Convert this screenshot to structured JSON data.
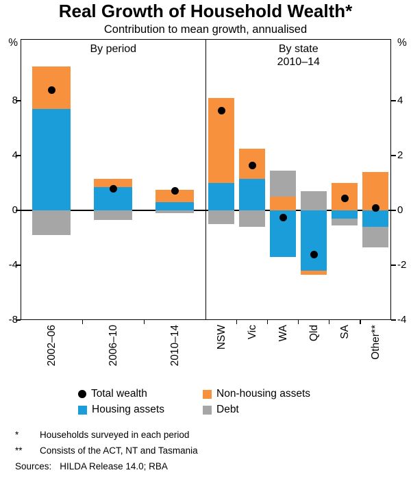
{
  "page": {
    "title": "Real Growth of Household Wealth*",
    "subtitle": "Contribution to mean growth, annualised"
  },
  "chart_data": {
    "type": "bar",
    "variant": "stacked",
    "title": "Real Growth of Household Wealth*",
    "subtitle": "Contribution to mean growth, annualised",
    "unit_left": "%",
    "unit_right": "%",
    "left_axis": {
      "min": -8,
      "max": 12.5,
      "ticks": [
        8,
        4,
        0,
        -4,
        -8
      ]
    },
    "right_axis": {
      "min": -4,
      "max": 6.25,
      "ticks": [
        4,
        2,
        0,
        -2,
        -4
      ]
    },
    "series_order": [
      "housing",
      "non_housing",
      "debt"
    ],
    "colors": {
      "housing": "#1B9DD9",
      "non_housing": "#F7913D",
      "debt": "#A6A6A6",
      "total": "#000000"
    },
    "panels": [
      {
        "label": "By period",
        "sublabel": "",
        "axis": "left",
        "bars": [
          {
            "category": "2002–06",
            "housing": 7.4,
            "non_housing": 3.1,
            "debt": -1.8,
            "total": 8.8
          },
          {
            "category": "2006–10",
            "housing": 1.7,
            "non_housing": 0.6,
            "debt": -0.7,
            "total": 1.6
          },
          {
            "category": "2010–14",
            "housing": 0.6,
            "non_housing": 0.9,
            "debt": -0.2,
            "total": 1.45
          }
        ]
      },
      {
        "label": "By state",
        "sublabel": "2010–14",
        "axis": "right",
        "bars": [
          {
            "category": "NSW",
            "housing": 1.0,
            "non_housing": 3.1,
            "debt": -0.5,
            "total": 3.65
          },
          {
            "category": "Vic",
            "housing": 1.15,
            "non_housing": 1.1,
            "debt": -0.6,
            "total": 1.65
          },
          {
            "category": "WA",
            "housing": -1.7,
            "non_housing": 0.5,
            "debt": 0.95,
            "total": -0.25
          },
          {
            "category": "Qld",
            "housing": -2.2,
            "non_housing": -0.15,
            "debt": 0.7,
            "total": -1.6
          },
          {
            "category": "SA",
            "housing": -0.3,
            "non_housing": 1.0,
            "debt": -0.25,
            "total": 0.45
          },
          {
            "category": "Other**",
            "housing": -0.6,
            "non_housing": 1.4,
            "debt": -0.75,
            "total": 0.1
          }
        ]
      }
    ],
    "legend": [
      {
        "key": "total",
        "label": "Total wealth",
        "marker": "dot"
      },
      {
        "key": "non_housing",
        "label": "Non-housing assets",
        "marker": "square"
      },
      {
        "key": "housing",
        "label": "Housing assets",
        "marker": "square"
      },
      {
        "key": "debt",
        "label": "Debt",
        "marker": "square"
      }
    ]
  },
  "footnotes": [
    {
      "marker": "*",
      "text": "Households surveyed in each period"
    },
    {
      "marker": "**",
      "text": "Consists of the ACT, NT and Tasmania"
    },
    {
      "marker": "Sources:",
      "text": "HILDA Release 14.0; RBA"
    }
  ]
}
